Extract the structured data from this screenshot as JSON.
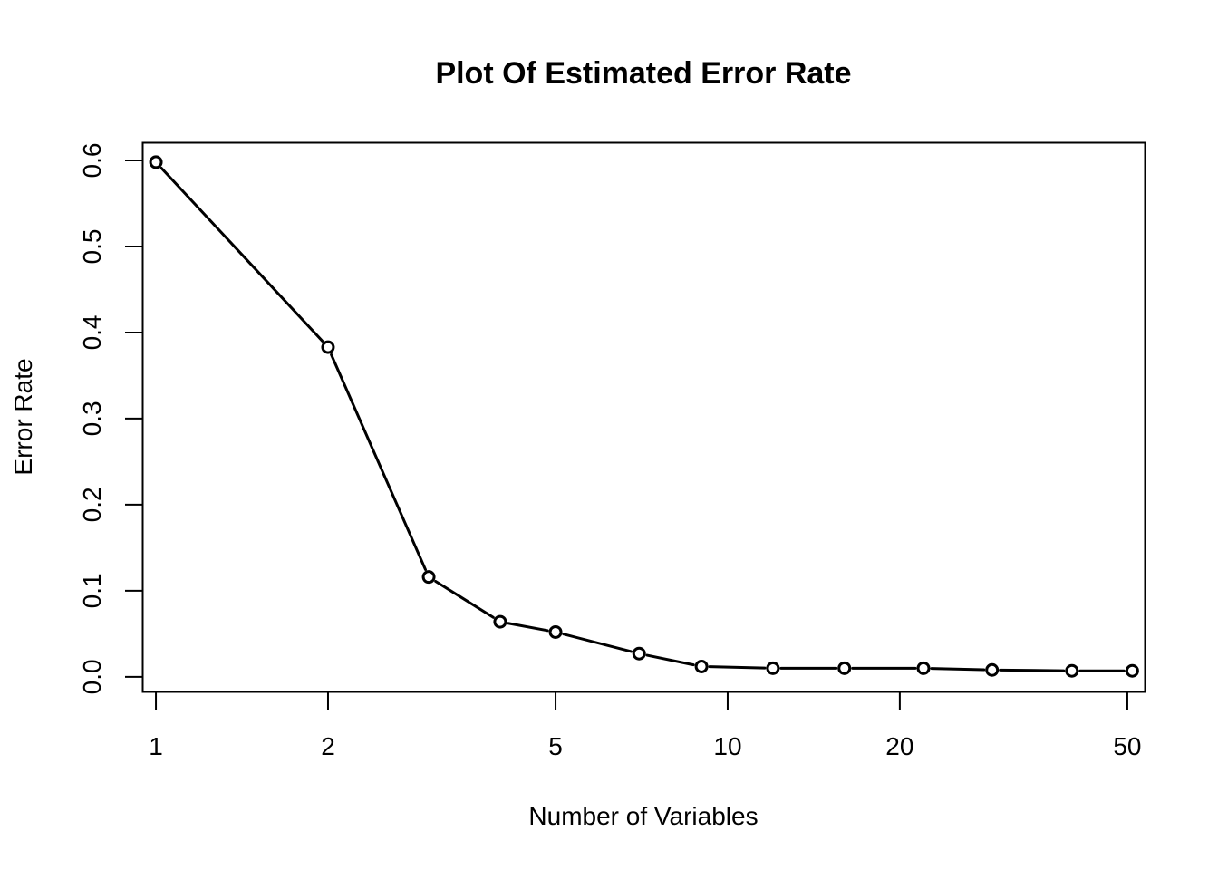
{
  "chart_data": {
    "type": "line",
    "title": "Plot Of Estimated Error Rate",
    "xlabel": "Number of Variables",
    "ylabel": "Error Rate",
    "x_scale": "log",
    "xlim": [
      0.95,
      53.6
    ],
    "ylim": [
      -0.017,
      0.62
    ],
    "x_ticks": [
      1,
      2,
      5,
      10,
      20,
      50
    ],
    "x_tick_labels": [
      "1",
      "2",
      "5",
      "10",
      "20",
      "50"
    ],
    "y_ticks": [
      0.0,
      0.1,
      0.2,
      0.3,
      0.4,
      0.5,
      0.6
    ],
    "y_tick_labels": [
      "0.0",
      "0.1",
      "0.2",
      "0.3",
      "0.4",
      "0.5",
      "0.6"
    ],
    "grid": false,
    "legend": "none",
    "series": [
      {
        "x": [
          1,
          2,
          3,
          4,
          5,
          7,
          9,
          12,
          16,
          22,
          29,
          40,
          51
        ],
        "y": [
          0.598,
          0.383,
          0.116,
          0.064,
          0.052,
          0.027,
          0.012,
          0.01,
          0.01,
          0.01,
          0.008,
          0.007,
          0.007
        ],
        "color": "#000000",
        "marker": "open-circle"
      }
    ]
  }
}
